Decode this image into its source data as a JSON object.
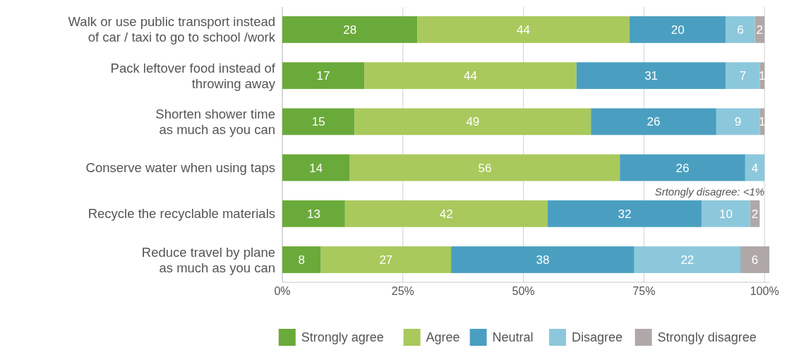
{
  "chart_data": {
    "type": "bar",
    "orientation": "horizontal",
    "stacked": true,
    "data_labels": true,
    "grid": "x",
    "legend": "bottom right",
    "categories": [
      "Walk or use public transport instead\nof car / taxi to go to school /work",
      "Pack leftover food instead of\nthrowing away",
      "Shorten shower time\nas much as you can",
      "Conserve water when using taps",
      "Recycle the recyclable materials",
      "Reduce travel by plane\nas much as you can"
    ],
    "series": [
      {
        "name": "Strongly agree",
        "color": "#6aaa3a",
        "values": [
          28,
          17,
          15,
          14,
          13,
          8
        ]
      },
      {
        "name": "Agree",
        "color": "#a9c95c",
        "values": [
          44,
          44,
          49,
          56,
          42,
          27
        ]
      },
      {
        "name": "Neutral",
        "color": "#4a9fc0",
        "values": [
          20,
          31,
          26,
          26,
          32,
          38
        ]
      },
      {
        "name": "Disagree",
        "color": "#8cc8dc",
        "values": [
          6,
          7,
          9,
          4,
          10,
          22
        ]
      },
      {
        "name": "Strongly disagree",
        "color": "#b0a8a8",
        "values": [
          2,
          1,
          1,
          null,
          2,
          6
        ]
      }
    ],
    "xlim": [
      0,
      101
    ],
    "xticks": [
      {
        "value": 0,
        "label": "0%"
      },
      {
        "value": 25,
        "label": "25%"
      },
      {
        "value": 50,
        "label": "50%"
      },
      {
        "value": 75,
        "label": "75%"
      },
      {
        "value": 100,
        "label": "100%"
      }
    ],
    "annotations": [
      {
        "text": "Srtongly disagree: <1%",
        "x": 100,
        "y": "Conserve water when using taps"
      }
    ]
  }
}
